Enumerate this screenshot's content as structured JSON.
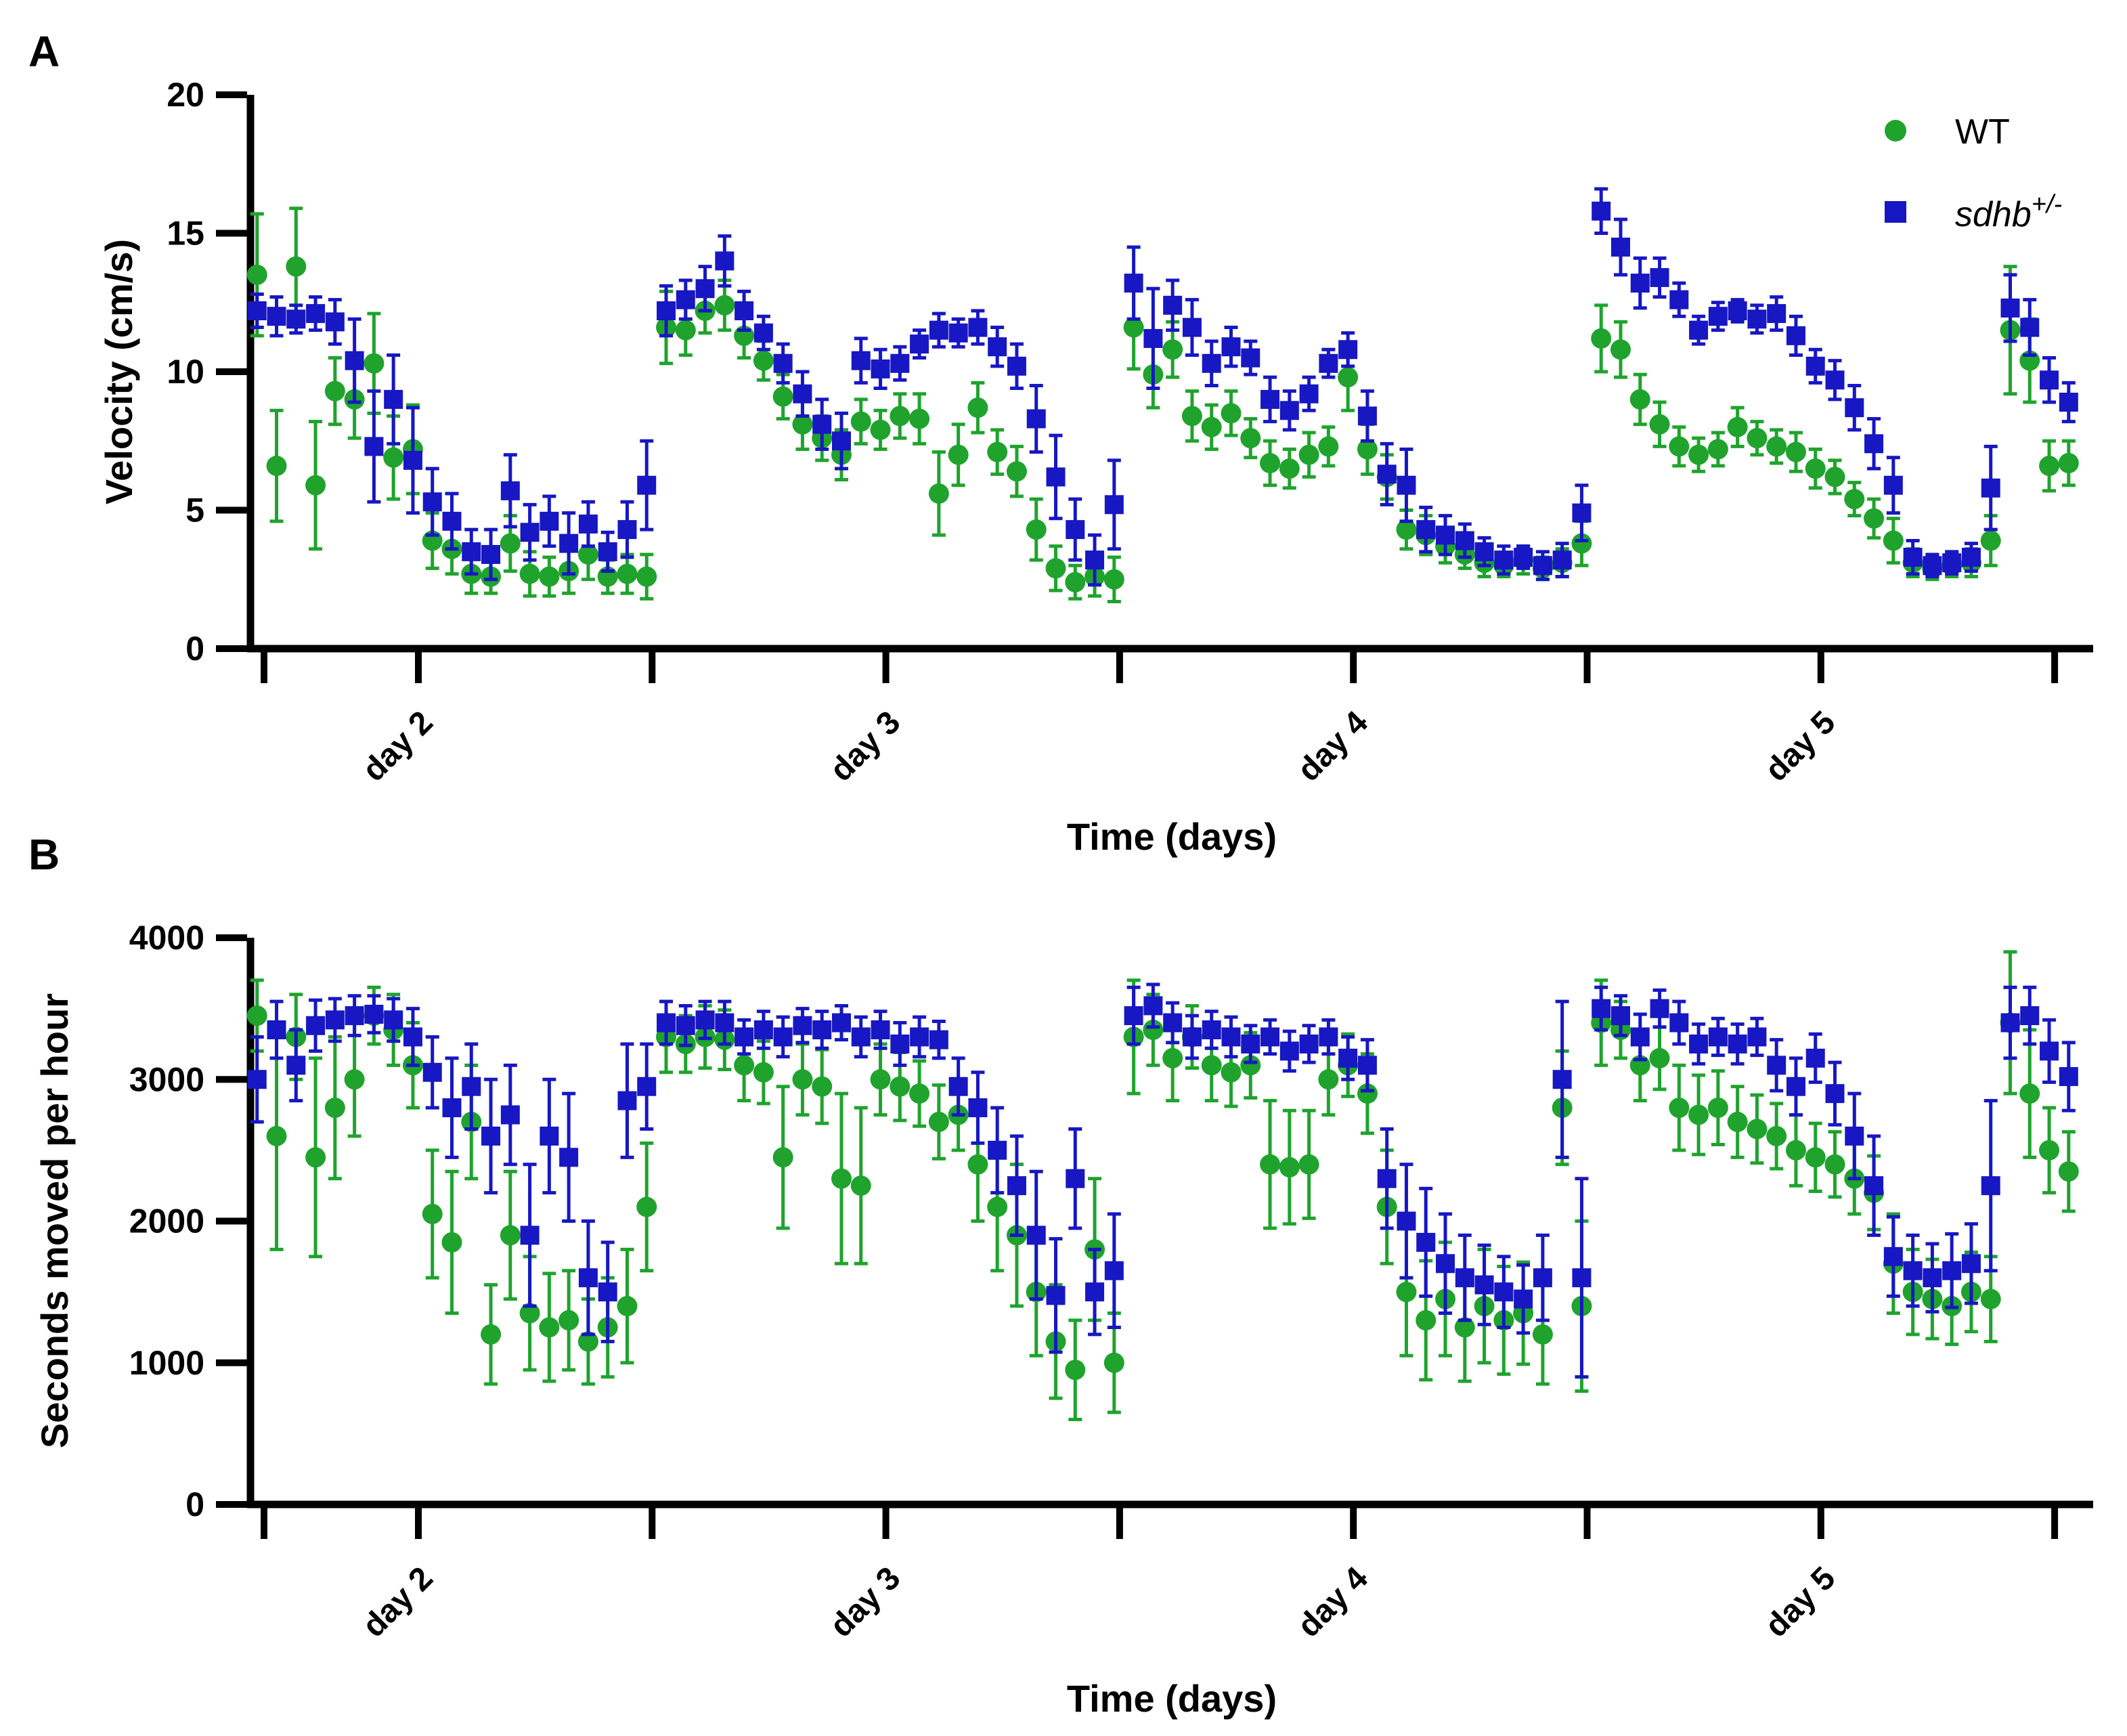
{
  "figure": {
    "panel_a_label": "A",
    "panel_b_label": "B"
  },
  "legend": {
    "wt_label": "WT",
    "sdhb_base": "sdhb",
    "sdhb_sup": "+/-"
  },
  "colors": {
    "wt": "#1FA32D",
    "sdhb": "#1717C3",
    "axis": "#000000"
  },
  "chart_data": [
    {
      "type": "scatter",
      "panel": "A",
      "xlabel": "Time (days)",
      "ylabel": "Velocity (cm/s)",
      "ylim": [
        0,
        20
      ],
      "y_ticks": [
        0,
        5,
        10,
        15,
        20
      ],
      "x_tick_days": [
        2,
        2.5,
        3,
        3.5,
        4,
        4.5,
        5,
        5.5
      ],
      "x_tick_labels": [
        "day 2",
        "",
        "day 3",
        "",
        "day 4",
        "",
        "day 5",
        ""
      ],
      "x_start_day": 1.655,
      "x_step_day": 0.0416667,
      "grid": false,
      "legend_position": "top-right",
      "series": [
        {
          "name": "WT",
          "marker": "circle",
          "color": "#1FA32D",
          "y": [
            13.5,
            6.6,
            13.8,
            5.9,
            9.3,
            9.0,
            10.3,
            6.9,
            7.2,
            3.9,
            3.6,
            2.7,
            2.6,
            3.8,
            2.7,
            2.6,
            2.8,
            3.4,
            2.6,
            2.7,
            2.6,
            11.6,
            11.5,
            12.2,
            12.4,
            11.3,
            10.4,
            9.1,
            8.1,
            7.6,
            7.0,
            8.2,
            7.9,
            8.4,
            8.3,
            5.6,
            7.0,
            8.7,
            7.1,
            6.4,
            4.3,
            2.9,
            2.4,
            2.6,
            2.5,
            11.6,
            9.9,
            10.8,
            8.4,
            8.0,
            8.5,
            7.6,
            6.7,
            6.5,
            7.0,
            7.3,
            9.8,
            7.2,
            6.2,
            4.3,
            4.1,
            3.7,
            3.4,
            3.1,
            3.0,
            3.2,
            2.9,
            3.1,
            3.8,
            11.2,
            10.8,
            9.0,
            8.1,
            7.3,
            7.0,
            7.2,
            8.0,
            7.6,
            7.3,
            7.1,
            6.5,
            6.2,
            5.4,
            4.7,
            3.9,
            3.1,
            2.9,
            3.0,
            3.1,
            3.9,
            11.5,
            10.4,
            6.6,
            6.7
          ],
          "err": [
            2.2,
            2.0,
            2.1,
            2.3,
            1.2,
            1.4,
            1.8,
            1.5,
            1.6,
            1.0,
            0.9,
            0.7,
            0.6,
            1.0,
            0.8,
            0.7,
            0.8,
            0.9,
            0.6,
            0.7,
            0.8,
            1.3,
            0.9,
            0.8,
            0.9,
            0.8,
            0.7,
            0.8,
            0.9,
            0.8,
            0.9,
            0.8,
            0.7,
            0.8,
            0.9,
            1.5,
            1.1,
            0.9,
            0.8,
            0.9,
            1.1,
            0.8,
            0.6,
            0.7,
            0.8,
            1.5,
            1.2,
            1.0,
            0.9,
            0.8,
            0.8,
            0.7,
            0.8,
            0.7,
            0.8,
            0.7,
            1.2,
            0.9,
            0.8,
            0.7,
            0.7,
            0.6,
            0.5,
            0.5,
            0.4,
            0.5,
            0.4,
            0.5,
            0.8,
            1.2,
            1.0,
            0.9,
            0.8,
            0.7,
            0.6,
            0.6,
            0.7,
            0.6,
            0.6,
            0.7,
            0.7,
            0.6,
            0.6,
            0.7,
            0.8,
            0.5,
            0.4,
            0.4,
            0.5,
            0.9,
            2.3,
            1.5,
            0.9,
            0.8
          ]
        },
        {
          "name": "sdhb+/-",
          "marker": "square",
          "color": "#1717C3",
          "y": [
            12.2,
            12.0,
            11.9,
            12.1,
            11.8,
            10.4,
            7.3,
            9.0,
            6.8,
            5.3,
            4.6,
            3.5,
            3.4,
            5.7,
            4.2,
            4.6,
            3.8,
            4.5,
            3.5,
            4.3,
            5.9,
            12.2,
            12.6,
            13.0,
            14.0,
            12.2,
            11.4,
            10.3,
            9.2,
            8.1,
            7.5,
            10.4,
            10.1,
            10.3,
            11.0,
            11.5,
            11.4,
            11.6,
            10.9,
            10.2,
            8.3,
            6.2,
            4.3,
            3.2,
            5.2,
            13.2,
            11.2,
            12.4,
            11.6,
            10.3,
            10.9,
            10.5,
            9.0,
            8.6,
            9.2,
            10.3,
            10.8,
            8.4,
            6.3,
            5.9,
            4.3,
            4.1,
            3.9,
            3.5,
            3.2,
            3.3,
            3.0,
            3.2,
            4.9,
            15.8,
            14.5,
            13.2,
            13.4,
            12.6,
            11.5,
            12.0,
            12.2,
            11.9,
            12.1,
            11.3,
            10.2,
            9.7,
            8.7,
            7.4,
            5.9,
            3.3,
            3.0,
            3.1,
            3.3,
            5.8,
            12.3,
            11.6,
            9.7,
            8.9
          ],
          "err": [
            0.6,
            0.7,
            0.5,
            0.6,
            0.8,
            1.5,
            2.0,
            1.6,
            1.9,
            1.2,
            1.0,
            0.8,
            0.9,
            1.3,
            1.0,
            0.9,
            1.1,
            0.8,
            0.7,
            1.0,
            1.6,
            0.9,
            0.7,
            0.8,
            0.9,
            0.7,
            0.6,
            0.7,
            0.8,
            0.9,
            1.0,
            0.8,
            0.7,
            0.6,
            0.5,
            0.6,
            0.5,
            0.6,
            0.7,
            0.8,
            1.2,
            1.5,
            1.1,
            0.9,
            1.6,
            1.3,
            1.8,
            0.9,
            1.0,
            0.8,
            0.7,
            0.6,
            0.8,
            0.7,
            0.6,
            0.5,
            0.6,
            0.9,
            1.1,
            1.3,
            0.8,
            0.7,
            0.6,
            0.5,
            0.5,
            0.4,
            0.5,
            0.6,
            1.0,
            0.8,
            1.0,
            0.9,
            0.7,
            0.6,
            0.5,
            0.5,
            0.4,
            0.5,
            0.6,
            0.7,
            0.6,
            0.7,
            0.8,
            0.9,
            1.0,
            0.6,
            0.4,
            0.4,
            0.5,
            1.5,
            1.2,
            1.0,
            0.8,
            0.7
          ]
        }
      ]
    },
    {
      "type": "scatter",
      "panel": "B",
      "xlabel": "Time (days)",
      "ylabel": "Seconds moved per hour",
      "ylim": [
        0,
        4000
      ],
      "y_ticks": [
        0,
        1000,
        2000,
        3000,
        4000
      ],
      "x_tick_days": [
        2,
        2.5,
        3,
        3.5,
        4,
        4.5,
        5,
        5.5
      ],
      "x_tick_labels": [
        "day 2",
        "",
        "day 3",
        "",
        "day 4",
        "",
        "day 5",
        ""
      ],
      "x_start_day": 1.655,
      "x_step_day": 0.0416667,
      "grid": false,
      "legend_position": "none",
      "series": [
        {
          "name": "WT",
          "marker": "circle",
          "color": "#1FA32D",
          "y": [
            3450,
            2600,
            3300,
            2450,
            2800,
            3000,
            3450,
            3350,
            3100,
            2050,
            1850,
            2700,
            1200,
            1900,
            1350,
            1250,
            1300,
            1150,
            1250,
            1400,
            2100,
            3300,
            3250,
            3300,
            3280,
            3100,
            3050,
            2450,
            3000,
            2950,
            2300,
            2250,
            3000,
            2950,
            2900,
            2700,
            2750,
            2400,
            2100,
            1900,
            1500,
            1150,
            950,
            1800,
            1000,
            3300,
            3350,
            3150,
            3300,
            3100,
            3050,
            3100,
            2400,
            2380,
            2400,
            3000,
            3100,
            2900,
            2100,
            1500,
            1300,
            1450,
            1250,
            1400,
            1300,
            1350,
            1200,
            2800,
            1400,
            3400,
            3350,
            3100,
            3150,
            2800,
            2750,
            2800,
            2700,
            2650,
            2600,
            2500,
            2450,
            2400,
            2300,
            2200,
            1700,
            1500,
            1450,
            1400,
            1500,
            1450,
            3400,
            2900,
            2500,
            2350
          ],
          "err": [
            250,
            800,
            300,
            700,
            500,
            400,
            200,
            250,
            300,
            450,
            500,
            400,
            350,
            450,
            400,
            380,
            350,
            300,
            350,
            400,
            450,
            250,
            200,
            220,
            210,
            250,
            220,
            500,
            250,
            260,
            600,
            550,
            250,
            240,
            230,
            260,
            250,
            400,
            450,
            500,
            450,
            400,
            350,
            500,
            350,
            400,
            250,
            300,
            220,
            250,
            240,
            230,
            450,
            400,
            380,
            250,
            220,
            280,
            400,
            450,
            420,
            400,
            380,
            400,
            380,
            360,
            350,
            400,
            600,
            300,
            200,
            250,
            220,
            300,
            280,
            260,
            250,
            240,
            230,
            250,
            240,
            230,
            250,
            260,
            350,
            300,
            280,
            270,
            280,
            300,
            500,
            450,
            300,
            280
          ]
        },
        {
          "name": "sdhb+/-",
          "marker": "square",
          "color": "#1717C3",
          "y": [
            3000,
            3350,
            3100,
            3380,
            3420,
            3450,
            3460,
            3420,
            3300,
            3050,
            2800,
            2950,
            2600,
            2750,
            1900,
            2600,
            2450,
            1600,
            1500,
            2850,
            2950,
            3400,
            3380,
            3420,
            3400,
            3300,
            3350,
            3300,
            3380,
            3350,
            3400,
            3300,
            3350,
            3250,
            3300,
            3280,
            2950,
            2800,
            2500,
            2250,
            1900,
            1475,
            2300,
            1500,
            1650,
            3450,
            3520,
            3400,
            3300,
            3350,
            3300,
            3250,
            3300,
            3200,
            3250,
            3300,
            3150,
            3100,
            2300,
            2000,
            1850,
            1700,
            1600,
            1550,
            1500,
            1450,
            1600,
            3000,
            1600,
            3500,
            3450,
            3300,
            3500,
            3400,
            3250,
            3300,
            3250,
            3300,
            3100,
            2950,
            3150,
            2900,
            2600,
            2250,
            1750,
            1650,
            1600,
            1650,
            1700,
            2250,
            3400,
            3450,
            3200,
            3020
          ],
          "err": [
            300,
            200,
            250,
            180,
            150,
            140,
            130,
            150,
            200,
            250,
            350,
            300,
            400,
            350,
            500,
            400,
            450,
            400,
            350,
            400,
            300,
            150,
            140,
            130,
            150,
            120,
            130,
            140,
            120,
            130,
            120,
            140,
            130,
            150,
            140,
            130,
            200,
            250,
            300,
            350,
            450,
            400,
            350,
            300,
            400,
            200,
            150,
            140,
            150,
            130,
            140,
            130,
            120,
            140,
            130,
            120,
            150,
            180,
            350,
            400,
            380,
            350,
            300,
            280,
            250,
            240,
            300,
            550,
            700,
            150,
            140,
            160,
            130,
            150,
            140,
            130,
            140,
            130,
            180,
            200,
            170,
            220,
            300,
            350,
            280,
            250,
            240,
            260,
            280,
            600,
            250,
            200,
            220,
            240
          ]
        }
      ]
    }
  ]
}
